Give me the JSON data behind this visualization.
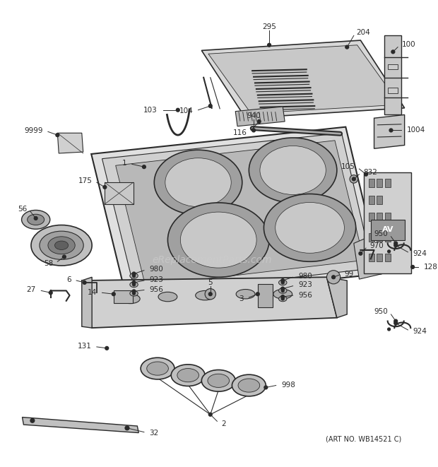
{
  "bg_color": "#ffffff",
  "art_no": "(ART NO. WB14521 C)",
  "watermark": "eReplacementParts.com",
  "fig_w": 6.2,
  "fig_h": 6.61,
  "dpi": 100
}
